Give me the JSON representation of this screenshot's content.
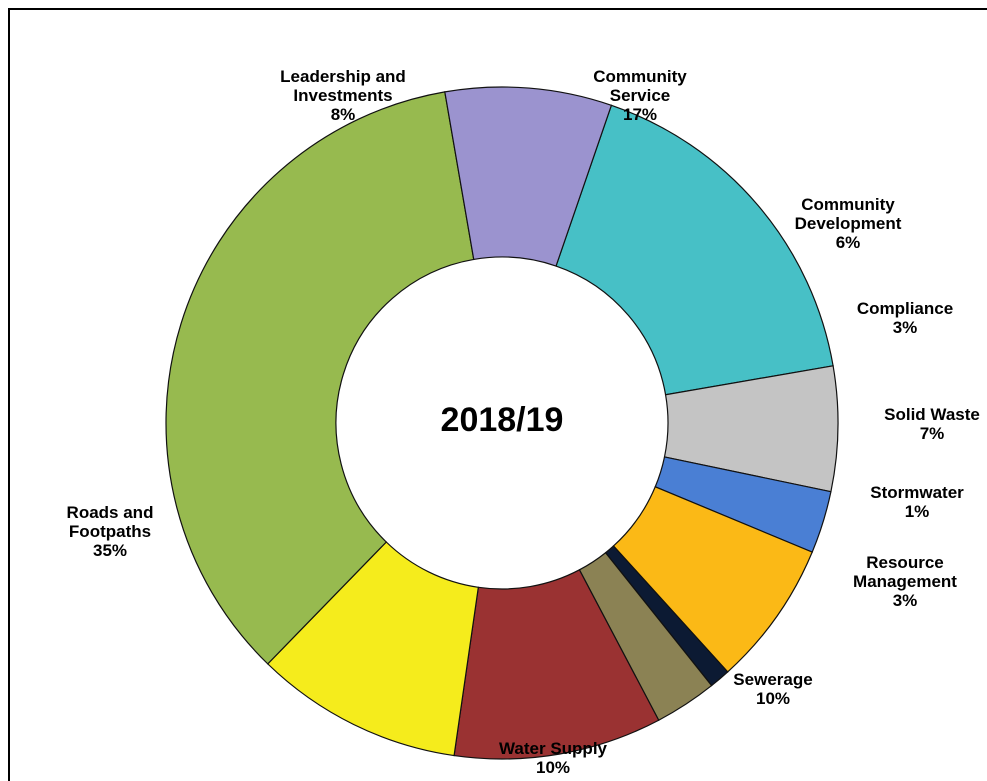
{
  "chart_data": {
    "type": "pie",
    "center_label": "2018/19",
    "slices": [
      {
        "name_lines": [
          "Community",
          "Service"
        ],
        "value": 17,
        "label": "17%",
        "color": "#47c0c6"
      },
      {
        "name_lines": [
          "Community",
          "Development"
        ],
        "value": 6,
        "label": "6%",
        "color": "#c4c4c4"
      },
      {
        "name_lines": [
          "Compliance"
        ],
        "value": 3,
        "label": "3%",
        "color": "#4a7fd4"
      },
      {
        "name_lines": [
          "Solid Waste"
        ],
        "value": 7,
        "label": "7%",
        "color": "#fbb916"
      },
      {
        "name_lines": [
          "Stormwater"
        ],
        "value": 1,
        "label": "1%",
        "color": "#0c1a33"
      },
      {
        "name_lines": [
          "Resource",
          "Management"
        ],
        "value": 3,
        "label": "3%",
        "color": "#8b8254"
      },
      {
        "name_lines": [
          "Sewerage"
        ],
        "value": 10,
        "label": "10%",
        "color": "#9a3232"
      },
      {
        "name_lines": [
          "Water Supply"
        ],
        "value": 10,
        "label": "10%",
        "color": "#f5ec1c"
      },
      {
        "name_lines": [
          "Roads and",
          "Footpaths"
        ],
        "value": 35,
        "label": "35%",
        "color": "#97ba4f"
      },
      {
        "name_lines": [
          "Leadership and",
          "Investments"
        ],
        "value": 8,
        "label": "8%",
        "color": "#9b93cf"
      }
    ]
  }
}
